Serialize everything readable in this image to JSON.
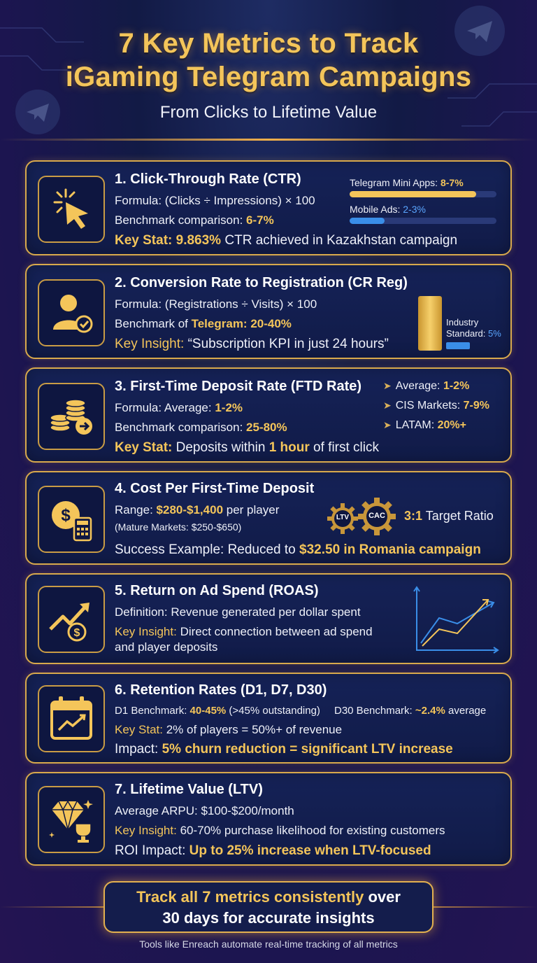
{
  "header": {
    "title_line1": "7 Key Metrics to Track",
    "title_line2": "iGaming Telegram Campaigns",
    "subtitle": "From Clicks to Lifetime Value"
  },
  "colors": {
    "gold": "#f4c55a",
    "blue": "#3a8ee8",
    "navy": "#121a45"
  },
  "cards": {
    "ctr": {
      "icon": "cursor-click-icon",
      "title": "1. Click-Through Rate (CTR)",
      "formula": "Formula: (Clicks ÷ Impressions) × 100",
      "benchmark_label": "Benchmark comparison: ",
      "benchmark_value": "6-7%",
      "key_label": "Key Stat: ",
      "key_value": "9.863%",
      "key_rest": " CTR achieved in Kazakhstan campaign",
      "bars": [
        {
          "label": "Telegram Mini Apps: ",
          "value": "8-7%",
          "fill": 0.86,
          "color": "#f4c55a"
        },
        {
          "label": "Mobile Ads: ",
          "value": "2-3%",
          "fill": 0.24,
          "color": "#3a8ee8"
        }
      ]
    },
    "cr_reg": {
      "icon": "user-check-icon",
      "title": "2. Conversion Rate to Registration (CR Reg)",
      "formula": "Formula: (Registrations ÷ Visits) × 100",
      "benchmark_label": "Benchmark of ",
      "benchmark_value": "Telegram: 20-40%",
      "key_label": "Key Insight: ",
      "key_rest": "“Subscription KPI in just 24 hours”",
      "industry_line1": "Industry",
      "industry_line2": "Standard: ",
      "industry_value": "5%"
    },
    "ftd": {
      "icon": "coin-stack-icon",
      "title": "3. First-Time Deposit Rate (FTD Rate)",
      "formula_label": "Formula: Average: ",
      "formula_value": "1-2%",
      "benchmark_label": "Benchmark comparison: ",
      "benchmark_value": "25-80%",
      "key_label": "Key Stat: ",
      "key_rest1": "Deposits within ",
      "key_value": "1 hour",
      "key_rest2": " of first click",
      "list": [
        {
          "label": "Average: ",
          "value": "1-2%"
        },
        {
          "label": "CIS Markets: ",
          "value": "7-9%"
        },
        {
          "label": "LATAM: ",
          "value": "20%+"
        }
      ]
    },
    "cpftd": {
      "icon": "dollar-calculator-icon",
      "title": "4. Cost Per First-Time Deposit",
      "range_label": "Range: ",
      "range_value": "$280-$1,400",
      "range_rest": " per player",
      "mature": "(Mature Markets: $250-$650)",
      "success_label": "Success Example: Reduced to ",
      "success_value": "$32.50 in Romania campaign",
      "gear1": "LTV",
      "gear2": "CAC",
      "ratio_value": "3:1",
      "ratio_rest": " Target Ratio"
    },
    "roas": {
      "icon": "growth-dollar-icon",
      "title": "5. Return on Ad Spend (ROAS)",
      "definition": "Definition: Revenue generated per dollar spent",
      "key_label": "Key Insight: ",
      "key_rest1": "Direct connection between ad spend",
      "key_rest2": "and player deposits"
    },
    "retention": {
      "icon": "calendar-trend-icon",
      "title": "6. Retention Rates (D1, D7, D30)",
      "d1_label": "D1 Benchmark: ",
      "d1_value": "40-45%",
      "d1_rest": " (>45% outstanding)",
      "d30_label": "D30 Benchmark: ",
      "d30_value": "~2.4%",
      "d30_rest": " average",
      "key_label": "Key Stat: ",
      "key_rest": "2% of players = 50%+ of revenue",
      "impact_label": "Impact: ",
      "impact_value": "5% churn reduction = significant LTV increase"
    },
    "ltv": {
      "icon": "diamond-trophy-icon",
      "title": "7. Lifetime Value (LTV)",
      "arpu": "Average ARPU: $100-$200/month",
      "key_label": "Key Insight: ",
      "key_rest": "60-70% purchase likelihood for existing customers",
      "roi_label": "ROI Impact: ",
      "roi_value": "Up to 25% increase when LTV-focused"
    }
  },
  "footer": {
    "line1_gold": "Track all 7 metrics consistently",
    "line1_rest": " over",
    "line2_bold": "30 days",
    "line2_rest": " for accurate insights",
    "note": "Tools like Enreach automate real-time tracking of all metrics"
  }
}
